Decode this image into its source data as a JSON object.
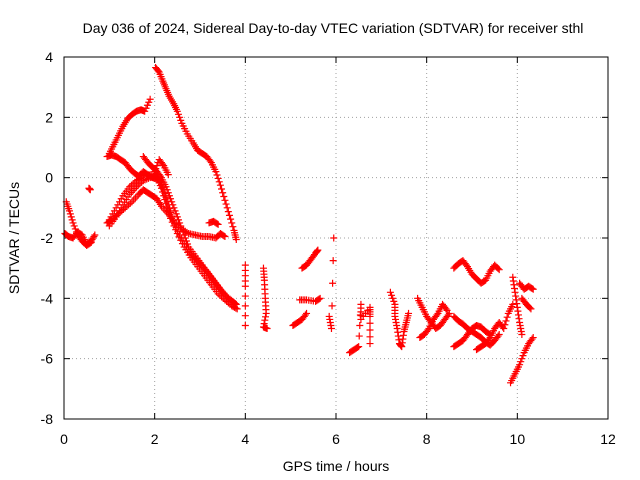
{
  "chart_data": {
    "type": "scatter",
    "title": "Day 036 of 2024, Sidereal Day-to-day VTEC variation (SDTVAR) for receiver sthl",
    "xlabel": "GPS time / hours",
    "ylabel": "SDTVAR / TECUs",
    "xlim": [
      0,
      12
    ],
    "ylim": [
      -8,
      4
    ],
    "xticks": [
      0,
      2,
      4,
      6,
      8,
      10,
      12
    ],
    "yticks": [
      -8,
      -6,
      -4,
      -2,
      0,
      2,
      4
    ],
    "grid": true,
    "marker": "+",
    "color": "#ff0000",
    "tracks": [
      [
        [
          0.02,
          -1.85
        ],
        [
          0.1,
          -1.95
        ],
        [
          0.2,
          -2.0
        ],
        [
          0.3,
          -1.8
        ],
        [
          0.4,
          -1.9
        ],
        [
          0.5,
          -2.2
        ],
        [
          0.6,
          -2.1
        ],
        [
          0.68,
          -1.9
        ]
      ],
      [
        [
          0.05,
          -0.8
        ],
        [
          0.12,
          -1.1
        ],
        [
          0.2,
          -1.5
        ],
        [
          0.3,
          -1.9
        ],
        [
          0.4,
          -2.1
        ],
        [
          0.5,
          -2.25
        ],
        [
          0.6,
          -2.15
        ]
      ],
      [
        [
          0.55,
          -0.35
        ],
        [
          0.58,
          -0.4
        ]
      ],
      [
        [
          0.95,
          -1.5
        ],
        [
          1.05,
          -1.4
        ],
        [
          1.2,
          -1.2
        ],
        [
          1.35,
          -1.0
        ],
        [
          1.5,
          -0.8
        ],
        [
          1.65,
          -0.55
        ],
        [
          1.75,
          -0.4
        ],
        [
          1.85,
          -0.5
        ],
        [
          1.95,
          -0.6
        ],
        [
          2.05,
          -0.7
        ],
        [
          2.15,
          -0.95
        ],
        [
          2.3,
          -1.2
        ],
        [
          2.45,
          -1.5
        ],
        [
          2.6,
          -1.7
        ],
        [
          2.75,
          -1.85
        ],
        [
          2.9,
          -1.9
        ],
        [
          3.05,
          -1.95
        ],
        [
          3.2,
          -1.95
        ],
        [
          3.35,
          -2.0
        ],
        [
          3.45,
          -1.85
        ],
        [
          3.55,
          -1.95
        ]
      ],
      [
        [
          1.0,
          -1.6
        ],
        [
          1.15,
          -1.3
        ],
        [
          1.3,
          -0.9
        ],
        [
          1.45,
          -0.55
        ],
        [
          1.6,
          -0.3
        ],
        [
          1.75,
          -0.1
        ],
        [
          1.9,
          0.0
        ],
        [
          2.0,
          0.05
        ],
        [
          2.1,
          -0.05
        ],
        [
          2.2,
          -0.4
        ],
        [
          2.3,
          -0.9
        ],
        [
          2.4,
          -1.4
        ],
        [
          2.55,
          -1.9
        ],
        [
          2.7,
          -2.3
        ],
        [
          2.85,
          -2.6
        ],
        [
          3.0,
          -2.85
        ],
        [
          3.15,
          -3.1
        ],
        [
          3.3,
          -3.4
        ],
        [
          3.45,
          -3.7
        ],
        [
          3.6,
          -3.95
        ],
        [
          3.72,
          -4.1
        ],
        [
          3.8,
          -4.2
        ]
      ],
      [
        [
          1.0,
          -1.4
        ],
        [
          1.15,
          -1.0
        ],
        [
          1.3,
          -0.6
        ],
        [
          1.45,
          -0.3
        ],
        [
          1.6,
          -0.1
        ],
        [
          1.75,
          0.05
        ],
        [
          1.9,
          0.1
        ],
        [
          2.05,
          0.0
        ],
        [
          2.15,
          -0.35
        ],
        [
          2.25,
          -0.85
        ],
        [
          2.35,
          -1.35
        ],
        [
          2.5,
          -1.85
        ],
        [
          2.65,
          -2.3
        ],
        [
          2.8,
          -2.65
        ],
        [
          2.95,
          -2.95
        ],
        [
          3.1,
          -3.25
        ],
        [
          3.25,
          -3.55
        ],
        [
          3.4,
          -3.85
        ],
        [
          3.55,
          -4.05
        ],
        [
          3.7,
          -4.25
        ],
        [
          3.82,
          -4.35
        ]
      ],
      [
        [
          0.95,
          0.7
        ],
        [
          1.05,
          0.75
        ],
        [
          1.15,
          0.7
        ],
        [
          1.25,
          0.6
        ],
        [
          1.35,
          0.5
        ],
        [
          1.45,
          0.3
        ],
        [
          1.55,
          0.15
        ],
        [
          1.65,
          0.05
        ],
        [
          1.75,
          0.2
        ],
        [
          1.85,
          0.1
        ],
        [
          1.95,
          0.0
        ],
        [
          2.05,
          -0.05
        ]
      ],
      [
        [
          1.0,
          0.8
        ],
        [
          1.1,
          1.1
        ],
        [
          1.2,
          1.4
        ],
        [
          1.3,
          1.7
        ],
        [
          1.4,
          1.95
        ],
        [
          1.5,
          2.1
        ],
        [
          1.6,
          2.2
        ],
        [
          1.7,
          2.25
        ],
        [
          1.78,
          2.2
        ],
        [
          1.9,
          2.6
        ]
      ],
      [
        [
          1.75,
          0.7
        ],
        [
          1.85,
          0.5
        ],
        [
          1.95,
          0.35
        ],
        [
          2.05,
          0.2
        ],
        [
          2.15,
          0.0
        ],
        [
          2.25,
          -0.3
        ],
        [
          2.35,
          -0.7
        ],
        [
          2.45,
          -1.1
        ],
        [
          2.55,
          -1.5
        ],
        [
          2.65,
          -1.9
        ],
        [
          2.75,
          -2.3
        ],
        [
          2.9,
          -2.6
        ],
        [
          3.05,
          -2.9
        ],
        [
          3.2,
          -3.2
        ],
        [
          3.35,
          -3.5
        ],
        [
          3.5,
          -3.8
        ],
        [
          3.62,
          -4.0
        ]
      ],
      [
        [
          2.0,
          0.2
        ],
        [
          2.1,
          0.6
        ],
        [
          2.2,
          0.4
        ],
        [
          2.3,
          0.1
        ]
      ],
      [
        [
          2.02,
          3.65
        ],
        [
          2.1,
          3.5
        ],
        [
          2.18,
          3.2
        ],
        [
          2.25,
          2.95
        ],
        [
          2.32,
          2.7
        ],
        [
          2.42,
          2.45
        ],
        [
          2.5,
          2.2
        ],
        [
          2.6,
          1.8
        ],
        [
          2.72,
          1.45
        ],
        [
          2.85,
          1.15
        ],
        [
          2.95,
          0.9
        ],
        [
          3.05,
          0.8
        ],
        [
          3.15,
          0.7
        ],
        [
          3.25,
          0.5
        ],
        [
          3.35,
          0.2
        ],
        [
          3.45,
          -0.25
        ],
        [
          3.55,
          -0.75
        ],
        [
          3.65,
          -1.25
        ],
        [
          3.75,
          -1.75
        ],
        [
          3.8,
          -2.05
        ]
      ],
      [
        [
          3.2,
          -1.5
        ],
        [
          3.3,
          -1.45
        ],
        [
          3.4,
          -1.55
        ]
      ],
      [
        [
          4.0,
          -2.9
        ],
        [
          4.0,
          -3.6
        ],
        [
          4.0,
          -4.9
        ]
      ],
      [
        [
          4.4,
          -3.0
        ],
        [
          4.42,
          -3.4
        ],
        [
          4.44,
          -4.0
        ],
        [
          4.46,
          -4.5
        ],
        [
          4.4,
          -4.95
        ],
        [
          4.48,
          -5.0
        ]
      ],
      [
        [
          5.05,
          -4.9
        ],
        [
          5.15,
          -4.8
        ],
        [
          5.25,
          -4.7
        ],
        [
          5.35,
          -4.5
        ]
      ],
      [
        [
          5.25,
          -3.0
        ],
        [
          5.35,
          -2.9
        ],
        [
          5.45,
          -2.7
        ],
        [
          5.55,
          -2.5
        ],
        [
          5.6,
          -2.4
        ]
      ],
      [
        [
          5.2,
          -4.05
        ],
        [
          5.35,
          -4.05
        ],
        [
          5.55,
          -4.1
        ],
        [
          5.65,
          -4.0
        ]
      ],
      [
        [
          5.85,
          -4.6
        ],
        [
          5.9,
          -5.0
        ],
        [
          5.95,
          -2.0
        ]
      ],
      [
        [
          6.3,
          -5.8
        ],
        [
          6.4,
          -5.7
        ],
        [
          6.5,
          -5.6
        ],
        [
          6.55,
          -4.2
        ],
        [
          6.55,
          -4.7
        ],
        [
          6.75,
          -4.3
        ],
        [
          6.75,
          -4.6
        ],
        [
          6.75,
          -5.5
        ]
      ],
      [
        [
          7.2,
          -3.8
        ],
        [
          7.3,
          -4.2
        ],
        [
          7.3,
          -4.6
        ],
        [
          7.35,
          -5.0
        ],
        [
          7.4,
          -5.5
        ],
        [
          7.45,
          -5.6
        ],
        [
          7.5,
          -5.1
        ],
        [
          7.55,
          -4.8
        ],
        [
          7.6,
          -4.5
        ]
      ],
      [
        [
          7.8,
          -4.0
        ],
        [
          7.9,
          -4.3
        ],
        [
          8.0,
          -4.6
        ],
        [
          8.1,
          -4.8
        ],
        [
          8.2,
          -5.0
        ],
        [
          8.3,
          -4.9
        ],
        [
          8.4,
          -4.7
        ],
        [
          8.5,
          -4.5
        ]
      ],
      [
        [
          7.85,
          -5.3
        ],
        [
          7.95,
          -5.2
        ],
        [
          8.05,
          -5.0
        ],
        [
          8.15,
          -4.7
        ],
        [
          8.25,
          -4.5
        ],
        [
          8.35,
          -4.2
        ],
        [
          8.45,
          -4.4
        ]
      ],
      [
        [
          8.6,
          -3.0
        ],
        [
          8.7,
          -2.85
        ],
        [
          8.8,
          -2.75
        ],
        [
          8.9,
          -2.95
        ],
        [
          9.0,
          -3.2
        ],
        [
          9.1,
          -3.35
        ],
        [
          9.2,
          -3.5
        ],
        [
          9.3,
          -3.4
        ],
        [
          9.4,
          -3.1
        ],
        [
          9.5,
          -2.9
        ],
        [
          9.6,
          -3.05
        ]
      ],
      [
        [
          8.6,
          -4.6
        ],
        [
          8.7,
          -4.75
        ],
        [
          8.8,
          -4.85
        ],
        [
          8.9,
          -5.0
        ],
        [
          9.0,
          -5.1
        ],
        [
          9.1,
          -5.2
        ],
        [
          9.2,
          -5.3
        ],
        [
          9.3,
          -5.45
        ],
        [
          9.4,
          -5.55
        ],
        [
          9.5,
          -5.4
        ],
        [
          9.6,
          -5.2
        ]
      ],
      [
        [
          8.6,
          -5.6
        ],
        [
          8.7,
          -5.5
        ],
        [
          8.8,
          -5.4
        ],
        [
          8.9,
          -5.2
        ],
        [
          9.0,
          -5.0
        ],
        [
          9.1,
          -4.9
        ],
        [
          9.2,
          -4.95
        ],
        [
          9.3,
          -5.1
        ],
        [
          9.4,
          -5.2
        ]
      ],
      [
        [
          9.1,
          -5.7
        ],
        [
          9.2,
          -5.6
        ],
        [
          9.3,
          -5.5
        ],
        [
          9.4,
          -5.3
        ],
        [
          9.5,
          -5.0
        ],
        [
          9.6,
          -4.8
        ],
        [
          9.7,
          -5.0
        ],
        [
          9.8,
          -4.5
        ],
        [
          9.9,
          -4.2
        ]
      ],
      [
        [
          9.9,
          -3.3
        ],
        [
          9.95,
          -3.8
        ],
        [
          10.0,
          -4.3
        ],
        [
          10.05,
          -4.8
        ],
        [
          10.1,
          -5.2
        ]
      ],
      [
        [
          9.85,
          -6.8
        ],
        [
          9.95,
          -6.5
        ],
        [
          10.05,
          -6.2
        ],
        [
          10.15,
          -5.8
        ],
        [
          10.25,
          -5.5
        ],
        [
          10.35,
          -5.3
        ]
      ],
      [
        [
          10.05,
          -3.5
        ],
        [
          10.15,
          -3.7
        ],
        [
          10.25,
          -3.6
        ],
        [
          10.35,
          -3.7
        ]
      ],
      [
        [
          10.1,
          -4.0
        ],
        [
          10.2,
          -4.2
        ],
        [
          10.3,
          -4.35
        ]
      ]
    ]
  }
}
